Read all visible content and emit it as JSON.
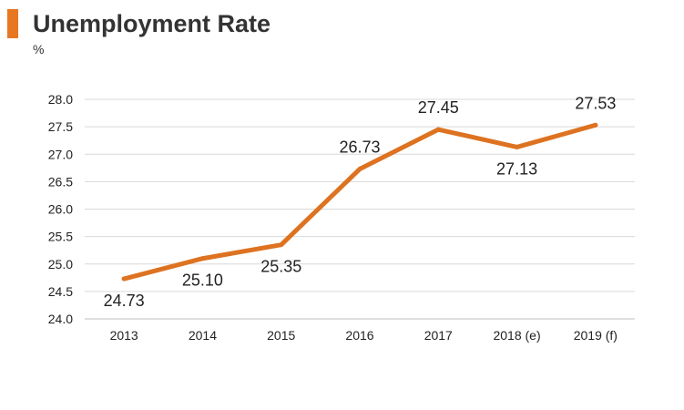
{
  "header": {
    "title": "Unemployment Rate",
    "unit": "%"
  },
  "colors": {
    "accent": "#e87722",
    "line": "#dd7220",
    "grid": "#d9d9d9",
    "axis": "#bfbfbf"
  },
  "chart_data": {
    "type": "line",
    "title": "Unemployment Rate",
    "ylabel": "%",
    "xlabel": "",
    "categories": [
      "2013",
      "2014",
      "2015",
      "2016",
      "2017",
      "2018 (e)",
      "2019 (f)"
    ],
    "series": [
      {
        "values": [
          24.73,
          25.1,
          25.35,
          26.73,
          27.45,
          27.13,
          27.53
        ]
      }
    ],
    "data_labels": [
      "24.73",
      "25.10",
      "25.35",
      "26.73",
      "27.45",
      "27.13",
      "27.53"
    ],
    "ylim": [
      24.0,
      28.0
    ],
    "yticks": [
      "24.0",
      "24.5",
      "25.0",
      "25.5",
      "26.0",
      "26.5",
      "27.0",
      "27.5",
      "28.0"
    ],
    "grid": true,
    "legend": "none"
  }
}
